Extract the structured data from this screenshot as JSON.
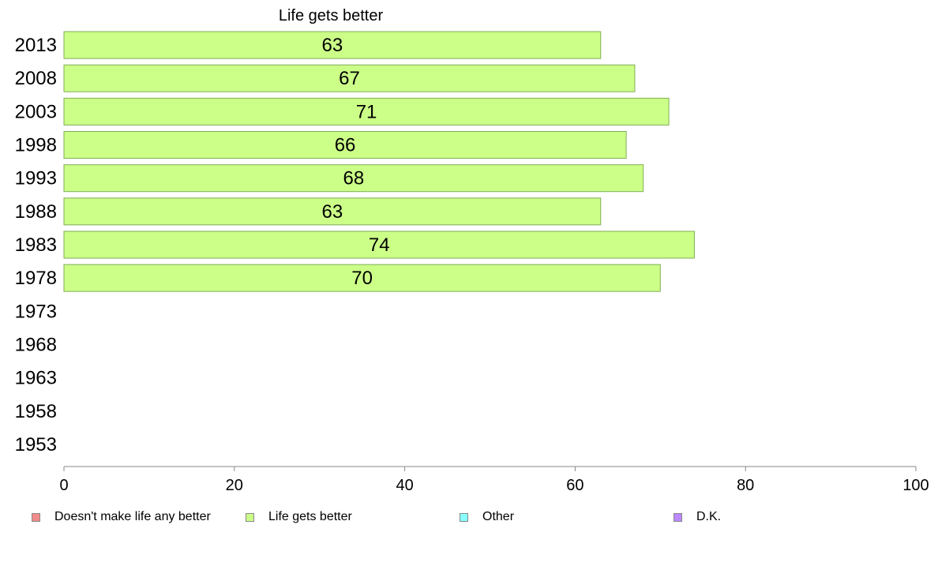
{
  "chart_data": {
    "type": "bar",
    "orientation": "horizontal",
    "title": "Life gets better",
    "categories": [
      "2013",
      "2008",
      "2003",
      "1998",
      "1993",
      "1988",
      "1983",
      "1978",
      "1973",
      "1968",
      "1963",
      "1958",
      "1953"
    ],
    "series": [
      {
        "name": "Life gets better",
        "color": "#ccff88",
        "values": [
          63,
          67,
          71,
          66,
          68,
          63,
          74,
          70,
          null,
          null,
          null,
          null,
          null
        ]
      }
    ],
    "xlim": [
      0,
      100
    ],
    "xticks": [
      0,
      20,
      40,
      60,
      80,
      100
    ],
    "grid": false,
    "legend_position": "bottom",
    "legend": [
      {
        "label": "Doesn't make life any better",
        "color": "#f28b8b"
      },
      {
        "label": "Life gets better",
        "color": "#ccff88"
      },
      {
        "label": "Other",
        "color": "#88ffff"
      },
      {
        "label": "D.K.",
        "color": "#bb88ff"
      }
    ]
  }
}
